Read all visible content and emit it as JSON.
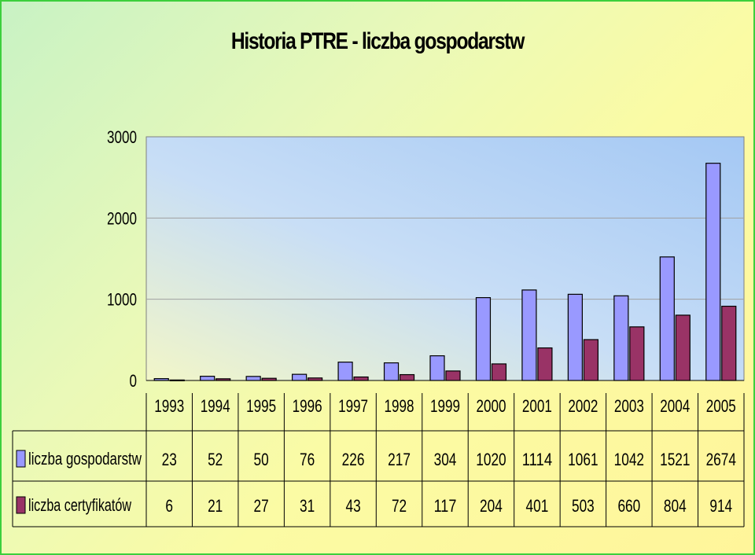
{
  "chart_data": {
    "type": "bar",
    "title": "Historia PTRE - liczba gospodarstw",
    "xlabel": "",
    "ylabel": "",
    "ylim": [
      0,
      3000
    ],
    "y_ticks": [
      "0",
      "1000",
      "2000",
      "3000"
    ],
    "categories": [
      "1993",
      "1994",
      "1995",
      "1996",
      "1997",
      "1998",
      "1999",
      "2000",
      "2001",
      "2002",
      "2003",
      "2004",
      "2005"
    ],
    "series": [
      {
        "name": "liczba gospodarstw",
        "color": "#9999ff",
        "values": [
          23,
          52,
          50,
          76,
          226,
          217,
          304,
          1020,
          1114,
          1061,
          1042,
          1521,
          2674
        ],
        "labels": [
          "23",
          "52",
          "50",
          "76",
          "226",
          "217",
          "304",
          "1020",
          "1114",
          "1061",
          "1042",
          "1521",
          "2674"
        ]
      },
      {
        "name": "liczba certyfikatów",
        "color": "#993366",
        "values": [
          6,
          21,
          27,
          31,
          43,
          72,
          117,
          204,
          401,
          503,
          660,
          804,
          914
        ],
        "labels": [
          "6",
          "21",
          "27",
          "31",
          "43",
          "72",
          "117",
          "204",
          "401",
          "503",
          "660",
          "804",
          "914"
        ]
      }
    ],
    "grid": true,
    "legend": "data-table-left"
  }
}
